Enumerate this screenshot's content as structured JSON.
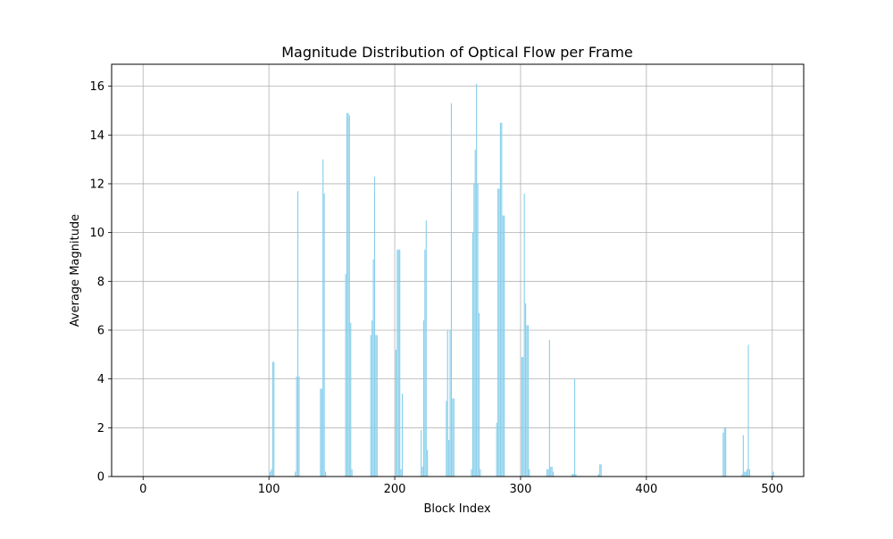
{
  "chart_data": {
    "type": "bar",
    "title": "Magnitude Distribution of Optical Flow per Frame",
    "xlabel": "Block Index",
    "ylabel": "Average Magnitude",
    "xlim": [
      -25,
      525
    ],
    "ylim": [
      0,
      16.9
    ],
    "xticks": [
      0,
      100,
      200,
      300,
      400,
      500
    ],
    "yticks": [
      0,
      2,
      4,
      6,
      8,
      10,
      12,
      14,
      16
    ],
    "grid": true,
    "bar_color": "#87ceeb",
    "x": [
      101,
      102,
      103,
      104,
      121,
      122,
      123,
      124,
      141,
      142,
      143,
      144,
      145,
      161,
      162,
      163,
      164,
      165,
      166,
      181,
      182,
      183,
      184,
      185,
      186,
      201,
      202,
      203,
      204,
      205,
      206,
      221,
      222,
      223,
      224,
      225,
      226,
      241,
      242,
      243,
      244,
      245,
      246,
      247,
      261,
      262,
      263,
      264,
      265,
      266,
      267,
      268,
      281,
      282,
      283,
      284,
      285,
      286,
      287,
      301,
      302,
      303,
      304,
      305,
      306,
      307,
      321,
      322,
      323,
      324,
      325,
      326,
      341,
      342,
      343,
      344,
      362,
      363,
      364,
      461,
      462,
      463,
      476,
      477,
      478,
      479,
      480,
      481,
      482,
      500,
      501
    ],
    "values": [
      0.2,
      0.3,
      4.7,
      4.7,
      0.2,
      4.1,
      11.7,
      4.1,
      3.6,
      3.6,
      13.0,
      11.6,
      0.2,
      8.3,
      14.9,
      14.9,
      14.8,
      6.3,
      0.3,
      5.8,
      6.4,
      8.9,
      12.3,
      5.8,
      5.8,
      5.2,
      9.3,
      9.3,
      9.3,
      0.3,
      3.4,
      1.9,
      0.4,
      6.4,
      9.3,
      10.5,
      1.1,
      3.1,
      6.0,
      1.5,
      6.0,
      15.3,
      3.2,
      3.2,
      0.3,
      10.0,
      12.0,
      13.4,
      16.1,
      12.0,
      6.7,
      0.3,
      2.2,
      11.8,
      11.8,
      14.5,
      14.5,
      10.7,
      10.7,
      4.9,
      4.9,
      11.6,
      7.1,
      6.2,
      6.2,
      0.3,
      0.3,
      0.3,
      5.6,
      0.4,
      0.4,
      0.2,
      0.1,
      0.1,
      4.0,
      0.1,
      0.1,
      0.5,
      0.5,
      1.8,
      2.0,
      2.0,
      0.1,
      1.7,
      0.2,
      0.2,
      0.3,
      5.4,
      0.3,
      0.2,
      0.2
    ]
  }
}
